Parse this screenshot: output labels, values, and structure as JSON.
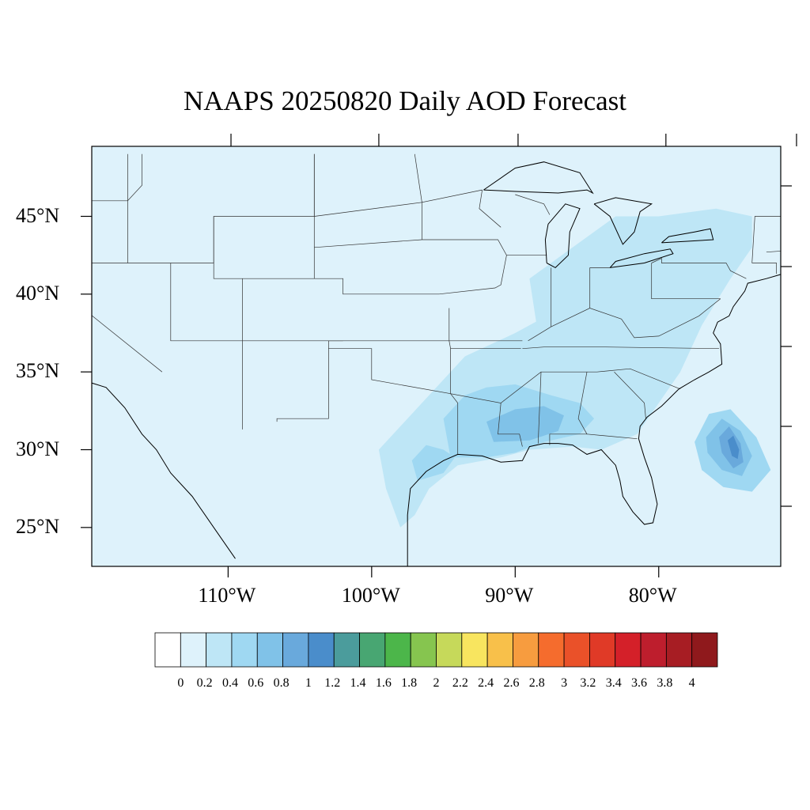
{
  "title": "NAAPS 20250820 Daily AOD Forecast",
  "map": {
    "lon_range": [
      -119.5,
      -71.5
    ],
    "lat_range": [
      22.5,
      49.5
    ],
    "lon_ticks": [
      -110,
      -100,
      -90,
      -80
    ],
    "lon_tick_labels": [
      "110°W",
      "100°W",
      "90°W",
      "80°W"
    ],
    "lat_ticks": [
      25,
      30,
      35,
      40,
      45
    ],
    "lat_tick_labels": [
      "25°N",
      "30°N",
      "35°N",
      "40°N",
      "45°N"
    ],
    "background_color": "#def2fb",
    "aod_regions": [
      {
        "name": "southern-plains-gulf",
        "level": 0.3,
        "color": "#bee6f6",
        "polygon": [
          [
            -99,
            27.5
          ],
          [
            -99.5,
            30
          ],
          [
            -98,
            31.5
          ],
          [
            -96,
            33.5
          ],
          [
            -93.5,
            36
          ],
          [
            -90,
            37.5
          ],
          [
            -88,
            38.5
          ],
          [
            -85,
            40
          ],
          [
            -83,
            41
          ],
          [
            -80,
            42
          ],
          [
            -77,
            43
          ],
          [
            -75,
            44
          ],
          [
            -73.5,
            43.5
          ],
          [
            -75,
            41
          ],
          [
            -77,
            38
          ],
          [
            -78.5,
            35
          ],
          [
            -80,
            33
          ],
          [
            -81.5,
            31
          ],
          [
            -84,
            30
          ],
          [
            -86,
            30.2
          ],
          [
            -89,
            30
          ],
          [
            -91,
            29.5
          ],
          [
            -94,
            29
          ],
          [
            -96,
            27.5
          ],
          [
            -97,
            25.8
          ],
          [
            -98,
            25
          ]
        ]
      },
      {
        "name": "great-lakes-northeast",
        "level": 0.3,
        "color": "#bee6f6",
        "polygon": [
          [
            -88.5,
            38
          ],
          [
            -89,
            41
          ],
          [
            -86,
            43
          ],
          [
            -83,
            45
          ],
          [
            -80,
            45
          ],
          [
            -76,
            45.5
          ],
          [
            -73.5,
            45
          ],
          [
            -73.5,
            43
          ],
          [
            -75,
            41
          ],
          [
            -79,
            40
          ],
          [
            -82,
            39
          ],
          [
            -85,
            38
          ]
        ]
      },
      {
        "name": "lower-mississippi-core",
        "level": 0.5,
        "color": "#9fd8f2",
        "polygon": [
          [
            -94.5,
            29.5
          ],
          [
            -95,
            32
          ],
          [
            -93.5,
            33.5
          ],
          [
            -92,
            34
          ],
          [
            -90,
            34.2
          ],
          [
            -87.5,
            33.5
          ],
          [
            -85.5,
            33
          ],
          [
            -84.5,
            32
          ],
          [
            -85.5,
            31
          ],
          [
            -88,
            30.5
          ],
          [
            -90,
            29.8
          ],
          [
            -92,
            29.5
          ]
        ]
      },
      {
        "name": "texas-coast-plume",
        "level": 0.5,
        "color": "#9fd8f2",
        "polygon": [
          [
            -96.8,
            28
          ],
          [
            -97.2,
            29.3
          ],
          [
            -96.2,
            30.3
          ],
          [
            -95,
            30
          ],
          [
            -94.2,
            29.5
          ],
          [
            -95,
            28.5
          ]
        ]
      },
      {
        "name": "mississippi-alabama-max",
        "level": 0.7,
        "color": "#80c2e8",
        "polygon": [
          [
            -91.5,
            30.5
          ],
          [
            -92,
            31.8
          ],
          [
            -90,
            32.6
          ],
          [
            -88,
            32.8
          ],
          [
            -86.6,
            32.2
          ],
          [
            -87,
            31.2
          ],
          [
            -89,
            30.6
          ]
        ]
      },
      {
        "name": "atlantic-plume-outer",
        "level": 0.5,
        "color": "#9fd8f2",
        "polygon": [
          [
            -77.5,
            30.5
          ],
          [
            -76.5,
            32.3
          ],
          [
            -75,
            32.6
          ],
          [
            -73.2,
            30.8
          ],
          [
            -72.2,
            28.7
          ],
          [
            -73.5,
            27.3
          ],
          [
            -75.5,
            27.6
          ],
          [
            -77,
            28.7
          ]
        ]
      },
      {
        "name": "atlantic-plume-mid",
        "level": 0.7,
        "color": "#80c2e8",
        "polygon": [
          [
            -76.7,
            30.8
          ],
          [
            -75.6,
            32
          ],
          [
            -74.3,
            31.2
          ],
          [
            -73.5,
            29.6
          ],
          [
            -74.2,
            28.3
          ],
          [
            -75.6,
            28.7
          ],
          [
            -76.6,
            29.8
          ]
        ]
      },
      {
        "name": "atlantic-plume-core",
        "level": 0.9,
        "color": "#69a9dc",
        "polygon": [
          [
            -75.8,
            30.8
          ],
          [
            -75.1,
            31.5
          ],
          [
            -74.3,
            30.4
          ],
          [
            -74.1,
            29.2
          ],
          [
            -74.8,
            28.8
          ],
          [
            -75.6,
            29.8
          ]
        ]
      },
      {
        "name": "atlantic-plume-peak",
        "level": 1.0,
        "color": "#4a8dcb",
        "polygon": [
          [
            -75.2,
            30.6
          ],
          [
            -74.8,
            30.9
          ],
          [
            -74.4,
            30
          ],
          [
            -74.5,
            29.4
          ],
          [
            -74.9,
            29.6
          ]
        ]
      }
    ],
    "coastline": [
      [
        -124.5,
        48.5
      ],
      [
        -124,
        46.5
      ],
      [
        -124,
        43
      ],
      [
        -124.2,
        41
      ],
      [
        -123.5,
        38.5
      ],
      [
        -122.5,
        37.5
      ],
      [
        -121.8,
        36.5
      ],
      [
        -120.6,
        34.6
      ],
      [
        -118.5,
        34
      ],
      [
        -117.2,
        32.7
      ],
      [
        -116,
        31
      ],
      [
        -115,
        30
      ],
      [
        -114,
        28.5
      ],
      [
        -112.5,
        27
      ],
      [
        -111,
        25
      ],
      [
        -109.5,
        23
      ]
    ],
    "coastline_gulf_east": [
      [
        -97.5,
        22.5
      ],
      [
        -97.5,
        25.8
      ],
      [
        -97.3,
        27.5
      ],
      [
        -96.2,
        28.6
      ],
      [
        -95,
        29.3
      ],
      [
        -94,
        29.7
      ],
      [
        -92.3,
        29.6
      ],
      [
        -91,
        29.2
      ],
      [
        -89.5,
        29.3
      ],
      [
        -89,
        30.2
      ],
      [
        -88,
        30.4
      ],
      [
        -87,
        30.4
      ],
      [
        -86,
        30.3
      ],
      [
        -85,
        29.7
      ],
      [
        -84,
        30
      ],
      [
        -83,
        29
      ],
      [
        -82.7,
        28
      ],
      [
        -82.5,
        27
      ],
      [
        -81.8,
        26
      ],
      [
        -81,
        25.2
      ],
      [
        -80.4,
        25.3
      ],
      [
        -80.1,
        26.5
      ],
      [
        -80.5,
        28.2
      ],
      [
        -81,
        29.5
      ],
      [
        -81.4,
        30.7
      ],
      [
        -81.3,
        31.5
      ],
      [
        -80.8,
        32.1
      ],
      [
        -79.8,
        32.8
      ],
      [
        -78.6,
        33.9
      ],
      [
        -77.5,
        34.5
      ],
      [
        -76.5,
        35
      ],
      [
        -75.6,
        35.5
      ],
      [
        -75.7,
        36.8
      ],
      [
        -76.2,
        37.5
      ],
      [
        -75.9,
        38.2
      ],
      [
        -75.1,
        38.6
      ],
      [
        -74.8,
        39.2
      ],
      [
        -74,
        40.2
      ],
      [
        -73.8,
        40.7
      ],
      [
        -72.5,
        41
      ],
      [
        -71,
        41.4
      ],
      [
        -70,
        41.7
      ],
      [
        -70.5,
        42.5
      ],
      [
        -70.6,
        43.1
      ],
      [
        -70.2,
        43.7
      ],
      [
        -69,
        44
      ],
      [
        -67,
        44.8
      ]
    ]
  },
  "colorbar": {
    "colors": [
      "#ffffff",
      "#def2fb",
      "#bee6f6",
      "#9fd8f2",
      "#80c2e8",
      "#69a9dc",
      "#4a8dcb",
      "#4b9c9c",
      "#48a672",
      "#4cb64a",
      "#86c54f",
      "#c6d95a",
      "#f8e55f",
      "#f8c04a",
      "#f79c3f",
      "#f56c2d",
      "#ea5129",
      "#e03a27",
      "#d42029",
      "#be1e2d",
      "#a71d23",
      "#8f191c"
    ],
    "labels": [
      "0",
      "0.2",
      "0.4",
      "0.6",
      "0.8",
      "1",
      "1.2",
      "1.4",
      "1.6",
      "1.8",
      "2",
      "2.2",
      "2.4",
      "2.6",
      "2.8",
      "3",
      "3.2",
      "3.4",
      "3.6",
      "3.8",
      "4"
    ]
  }
}
